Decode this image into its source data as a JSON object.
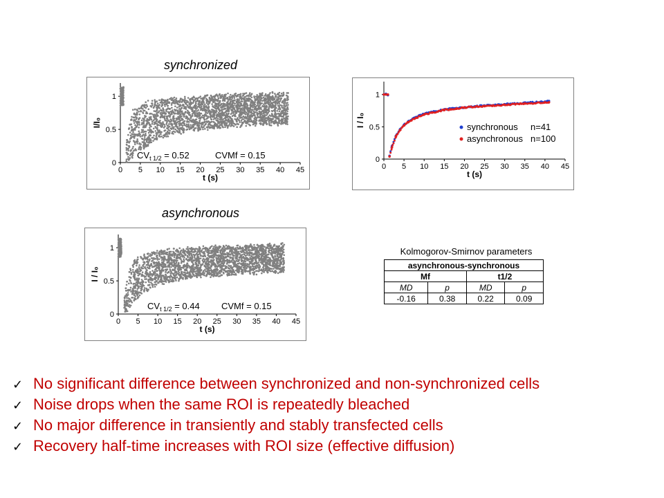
{
  "panels": {
    "sync_title": "synchronized",
    "async_title": "asynchronous"
  },
  "chart_data": [
    {
      "type": "scatter",
      "id": "synchronized",
      "xlabel": "t (s)",
      "ylabel": "I/I₀",
      "xlim": [
        0,
        45
      ],
      "ylim": [
        0,
        1.2
      ],
      "xticks": [
        "0",
        "5",
        "10",
        "15",
        "20",
        "25",
        "30",
        "35",
        "40",
        "45"
      ],
      "yticks": [
        "0",
        "0.5",
        "1"
      ],
      "pre_bleach": {
        "x_range": [
          0,
          0.8
        ],
        "y_mean": 1.0
      },
      "recovery_band": {
        "x": [
          1.5,
          3,
          5,
          8,
          10,
          15,
          20,
          25,
          30,
          35,
          40,
          42
        ],
        "y_upper": [
          0.3,
          0.78,
          0.88,
          0.93,
          0.95,
          0.98,
          1.0,
          1.02,
          1.03,
          1.04,
          1.05,
          1.05
        ],
        "y_lower": [
          0.02,
          0.05,
          0.18,
          0.3,
          0.38,
          0.45,
          0.5,
          0.53,
          0.55,
          0.57,
          0.58,
          0.58
        ]
      },
      "annotations": [
        {
          "text": "CV",
          "sub": "t 1/2",
          "rest": " = 0.52"
        },
        {
          "text": "CVMf = 0.15"
        }
      ],
      "color": "#808080"
    },
    {
      "type": "scatter",
      "id": "asynchronous",
      "xlabel": "t (s)",
      "ylabel": "I / I₀",
      "xlim": [
        0,
        45
      ],
      "ylim": [
        0,
        1.2
      ],
      "xticks": [
        "0",
        "5",
        "10",
        "15",
        "20",
        "25",
        "30",
        "35",
        "40",
        "45"
      ],
      "yticks": [
        "0",
        "0.5",
        "1"
      ],
      "pre_bleach": {
        "x_range": [
          0,
          0.8
        ],
        "y_mean": 1.0
      },
      "recovery_band": {
        "x": [
          1.5,
          3,
          5,
          8,
          10,
          15,
          20,
          25,
          30,
          35,
          40,
          42
        ],
        "y_upper": [
          0.32,
          0.75,
          0.87,
          0.93,
          0.95,
          0.98,
          1.0,
          1.02,
          1.03,
          1.04,
          1.05,
          1.05
        ],
        "y_lower": [
          0.02,
          0.08,
          0.25,
          0.38,
          0.45,
          0.52,
          0.56,
          0.58,
          0.6,
          0.61,
          0.62,
          0.62
        ]
      },
      "annotations": [
        {
          "text": "CV",
          "sub": "t 1/2",
          "rest": " = 0.44"
        },
        {
          "text": "CVMf = 0.15"
        }
      ],
      "color": "#808080"
    },
    {
      "type": "scatter",
      "id": "mean-curves",
      "xlabel": "t (s)",
      "ylabel": "I / I₀",
      "xlim": [
        0,
        45
      ],
      "ylim": [
        0,
        1.2
      ],
      "xticks": [
        "0",
        "5",
        "10",
        "15",
        "20",
        "25",
        "30",
        "35",
        "40",
        "45"
      ],
      "yticks": [
        "0",
        "0.5",
        "1"
      ],
      "series": [
        {
          "name": "synchronous",
          "n_label": "n=41",
          "color": "#1f3fd0",
          "x": [
            0,
            0.5,
            1.0,
            1.4,
            2,
            3,
            4,
            5,
            6,
            8,
            10,
            12,
            15,
            18,
            20,
            25,
            30,
            35,
            40,
            41
          ],
          "y": [
            1.0,
            1.01,
            0.99,
            0.05,
            0.2,
            0.36,
            0.46,
            0.53,
            0.58,
            0.65,
            0.7,
            0.73,
            0.77,
            0.79,
            0.8,
            0.83,
            0.85,
            0.87,
            0.89,
            0.9
          ]
        },
        {
          "name": "asynchronous",
          "n_label": "n=100",
          "color": "#e02020",
          "x": [
            0,
            0.5,
            1.0,
            1.4,
            2,
            3,
            4,
            5,
            6,
            8,
            10,
            12,
            15,
            18,
            20,
            25,
            30,
            35,
            40,
            41
          ],
          "y": [
            1.0,
            1.0,
            1.0,
            0.04,
            0.18,
            0.35,
            0.45,
            0.52,
            0.57,
            0.64,
            0.69,
            0.72,
            0.76,
            0.78,
            0.8,
            0.82,
            0.84,
            0.86,
            0.88,
            0.88
          ]
        }
      ]
    }
  ],
  "ks_table": {
    "title": "Kolmogorov-Smirnov parameters",
    "header": "asynchronous-synchronous",
    "groups": [
      "Mf",
      "t1/2"
    ],
    "subheaders": [
      "MD",
      "p",
      "MD",
      "p"
    ],
    "values": [
      "-0.16",
      "0.38",
      "0.22",
      "0.09"
    ]
  },
  "bullets": {
    "check_mark": "✓",
    "items": [
      "No significant difference  between synchronized and non-synchronized cells",
      "Noise drops when the same ROI is repeatedly bleached",
      "No major difference in transiently and stably transfected cells",
      "Recovery half-time increases with ROI size (effective diffusion)"
    ]
  },
  "colors": {
    "bullet_text": "#c00000",
    "scatter_gray": "#808080",
    "sync_blue": "#1f3fd0",
    "async_red": "#e02020"
  }
}
